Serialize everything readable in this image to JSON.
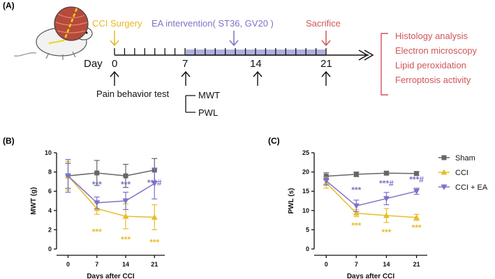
{
  "colors": {
    "sham": "#666666",
    "cci": "#e8bd2a",
    "cci_ea": "#7b72c9",
    "surgery_text": "#e6b81e",
    "ea_text": "#7b72c9",
    "sacrifice_text": "#d0565a",
    "analysis_text": "#d0565a",
    "band": "#aeb0dc"
  },
  "timeline": {
    "panel_label": "(A)",
    "surgery_label": "CCI Surgery",
    "ea_label": "EA intervention( ST36, GV20 )",
    "sacrifice_label": "Sacrifice",
    "day_prefix": "Day",
    "day_labels": [
      "0",
      "7",
      "14",
      "21"
    ],
    "pain_test_label": "Pain behavior test",
    "mwt_label": "MWT",
    "pwl_label": "PWL",
    "analyses": [
      "Histology analysis",
      "Electron microscopy",
      "Lipid peroxidation",
      "Ferroptosis activity"
    ],
    "mouse_icon": "mouse-with-nerve-icon"
  },
  "chart_data": [
    {
      "panel_label": "(B)",
      "type": "line",
      "title": "",
      "xlabel": "Days after CCI",
      "ylabel": "MWT (g)",
      "x": [
        0,
        7,
        14,
        21
      ],
      "x_ticks": [
        "0",
        "7",
        "14",
        "21"
      ],
      "ylim": [
        0,
        10
      ],
      "y_ticks": [
        "0",
        "2",
        "4",
        "6",
        "8",
        "10"
      ],
      "y_tick_values": [
        0,
        2,
        4,
        6,
        8,
        10
      ],
      "grid": false,
      "series": [
        {
          "name": "Sham",
          "marker": "square",
          "values": [
            7.6,
            7.9,
            7.6,
            8.2
          ],
          "errors": [
            1.3,
            1.3,
            1.2,
            1.2
          ]
        },
        {
          "name": "CCI",
          "marker": "triangle-up",
          "values": [
            7.6,
            4.2,
            3.4,
            3.3
          ],
          "errors": [
            1.5,
            0.6,
            1.3,
            1.3
          ]
        },
        {
          "name": "CCI + EA",
          "marker": "triangle-down",
          "values": [
            7.6,
            4.8,
            5.0,
            6.8
          ],
          "errors": [
            1.7,
            0.6,
            0.9,
            1.6
          ]
        }
      ],
      "annotations": [
        {
          "series": "CCI + EA",
          "x": 7,
          "y": 6.4,
          "text": "***"
        },
        {
          "series": "CCI + EA",
          "x": 14,
          "y": 6.4,
          "text": "***"
        },
        {
          "series": "CCI + EA",
          "x": 21,
          "y": 6.6,
          "text": "***#"
        },
        {
          "series": "CCI",
          "x": 7,
          "y": 1.5,
          "text": "***"
        },
        {
          "series": "CCI",
          "x": 14,
          "y": 0.7,
          "text": "***"
        },
        {
          "series": "CCI",
          "x": 21,
          "y": 0.4,
          "text": "***"
        }
      ]
    },
    {
      "panel_label": "(C)",
      "type": "line",
      "title": "",
      "xlabel": "Days after CCI",
      "ylabel": "PWL (s)",
      "x": [
        0,
        7,
        14,
        21
      ],
      "x_ticks": [
        "0",
        "7",
        "14",
        "21"
      ],
      "ylim": [
        0,
        25
      ],
      "y_ticks": [
        "0",
        "5",
        "10",
        "15",
        "20",
        "25"
      ],
      "y_tick_values": [
        0,
        5,
        10,
        15,
        20,
        25
      ],
      "grid": false,
      "legend_position": "top-right",
      "series": [
        {
          "name": "Sham",
          "marker": "square",
          "values": [
            18.9,
            19.4,
            19.7,
            19.6
          ],
          "errors": [
            0.9,
            0.6,
            0.4,
            0.5
          ]
        },
        {
          "name": "CCI",
          "marker": "triangle-up",
          "values": [
            17.2,
            9.3,
            8.7,
            8.2
          ],
          "errors": [
            1.4,
            0.9,
            1.8,
            0.8
          ]
        },
        {
          "name": "CCI + EA",
          "marker": "triangle-down",
          "values": [
            17.7,
            11.2,
            13.1,
            15.0
          ],
          "errors": [
            1.1,
            1.5,
            1.6,
            0.8
          ]
        }
      ],
      "annotations": [
        {
          "series": "CCI + EA",
          "x": 7,
          "y": 14.6,
          "text": "***"
        },
        {
          "series": "CCI + EA",
          "x": 14,
          "y": 16.3,
          "text": "***#"
        },
        {
          "series": "CCI + EA",
          "x": 21,
          "y": 17.3,
          "text": "***#"
        },
        {
          "series": "CCI",
          "x": 7,
          "y": 5.3,
          "text": "***"
        },
        {
          "series": "CCI",
          "x": 14,
          "y": 3.6,
          "text": "***"
        },
        {
          "series": "CCI",
          "x": 21,
          "y": 4.8,
          "text": "***"
        }
      ]
    }
  ]
}
